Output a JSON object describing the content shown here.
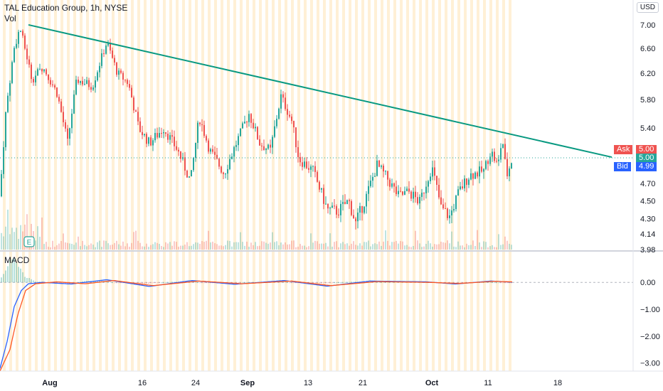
{
  "header": {
    "title": "TAL Education Group, 1h, NYSE",
    "vol_label": "Vol"
  },
  "currency": "USD",
  "macd_label": "MACD",
  "earnings_label": "E",
  "quote": {
    "ask_label": "Ask",
    "ask": "5.00",
    "last": "5.00",
    "bid_label": "Bid",
    "bid": "4.99"
  },
  "colors": {
    "up": "#26a69a",
    "down": "#ef5350",
    "trend": "#089981",
    "ask": "#ef5350",
    "bid": "#2962ff",
    "macd": "#2962ff",
    "signal": "#ff5722",
    "session": "#fff0d6",
    "earnings": "#26a69a"
  },
  "chart_data": [
    {
      "type": "candlestick",
      "title": "TAL Education Group, 1h, NYSE",
      "y_ticks": [
        "7.00",
        "6.60",
        "6.20",
        "5.80",
        "5.40",
        "4.70",
        "4.50",
        "4.30",
        "4.14",
        "3.98"
      ],
      "ylim": [
        3.98,
        7.1
      ],
      "y_scale": "log",
      "x_ticks": [
        "Aug",
        "16",
        "24",
        "Sep",
        "13",
        "21",
        "Oct",
        "11",
        "18"
      ],
      "trendline": [
        [
          7.0,
          "Aug"
        ],
        [
          5.02,
          "18"
        ]
      ],
      "last_price": 5.0,
      "ask": 5.0,
      "bid": 4.99,
      "volume_shown": true,
      "close_path": [
        [
          0,
          4.55
        ],
        [
          8,
          5.6
        ],
        [
          20,
          6.6
        ],
        [
          28,
          6.95
        ],
        [
          45,
          6.1
        ],
        [
          60,
          6.3
        ],
        [
          80,
          5.9
        ],
        [
          95,
          5.2
        ],
        [
          108,
          6.1
        ],
        [
          130,
          6.0
        ],
        [
          150,
          6.7
        ],
        [
          165,
          6.2
        ],
        [
          180,
          6.05
        ],
        [
          195,
          5.4
        ],
        [
          210,
          5.2
        ],
        [
          230,
          5.4
        ],
        [
          250,
          5.1
        ],
        [
          268,
          4.72
        ],
        [
          280,
          5.55
        ],
        [
          295,
          5.1
        ],
        [
          315,
          4.82
        ],
        [
          330,
          5.15
        ],
        [
          350,
          5.6
        ],
        [
          365,
          5.2
        ],
        [
          380,
          5.1
        ],
        [
          395,
          5.85
        ],
        [
          410,
          5.5
        ],
        [
          420,
          5.0
        ],
        [
          440,
          4.85
        ],
        [
          460,
          4.4
        ],
        [
          475,
          4.38
        ],
        [
          490,
          4.5
        ],
        [
          500,
          4.25
        ],
        [
          515,
          4.55
        ],
        [
          530,
          4.92
        ],
        [
          545,
          4.75
        ],
        [
          560,
          4.55
        ],
        [
          575,
          4.6
        ],
        [
          590,
          4.48
        ],
        [
          607,
          4.9
        ],
        [
          620,
          4.42
        ],
        [
          632,
          4.32
        ],
        [
          645,
          4.6
        ],
        [
          660,
          4.8
        ],
        [
          680,
          4.85
        ],
        [
          690,
          5.1
        ],
        [
          700,
          4.9
        ],
        [
          706,
          5.28
        ],
        [
          712,
          4.78
        ],
        [
          720,
          5.0
        ]
      ]
    },
    {
      "type": "line",
      "title": "MACD",
      "y_ticks": [
        "0.00",
        "−1.00",
        "−2.00",
        "−3.00"
      ],
      "ylim": [
        -3.3,
        0.35
      ],
      "series": [
        {
          "values": [
            [
              0,
              -3.2
            ],
            [
              10,
              -2.2
            ],
            [
              20,
              -0.9
            ],
            [
              30,
              -0.3
            ],
            [
              40,
              -0.05
            ],
            [
              60,
              0.0
            ],
            [
              100,
              -0.06
            ],
            [
              150,
              0.1
            ],
            [
              210,
              -0.15
            ],
            [
              270,
              0.07
            ],
            [
              330,
              -0.07
            ],
            [
              400,
              0.07
            ],
            [
              460,
              -0.14
            ],
            [
              520,
              0.05
            ],
            [
              600,
              0.02
            ],
            [
              640,
              -0.06
            ],
            [
              690,
              0.05
            ],
            [
              720,
              0.01
            ]
          ]
        },
        {
          "values": [
            [
              0,
              -3.3
            ],
            [
              14,
              -2.5
            ],
            [
              25,
              -1.2
            ],
            [
              36,
              -0.3
            ],
            [
              50,
              -0.05
            ],
            [
              80,
              0.02
            ],
            [
              120,
              -0.05
            ],
            [
              160,
              0.07
            ],
            [
              215,
              -0.12
            ],
            [
              280,
              0.05
            ],
            [
              340,
              -0.05
            ],
            [
              410,
              0.05
            ],
            [
              465,
              -0.12
            ],
            [
              530,
              0.03
            ],
            [
              605,
              0.0
            ],
            [
              645,
              -0.04
            ],
            [
              695,
              0.04
            ],
            [
              720,
              0.02
            ]
          ]
        }
      ]
    }
  ]
}
